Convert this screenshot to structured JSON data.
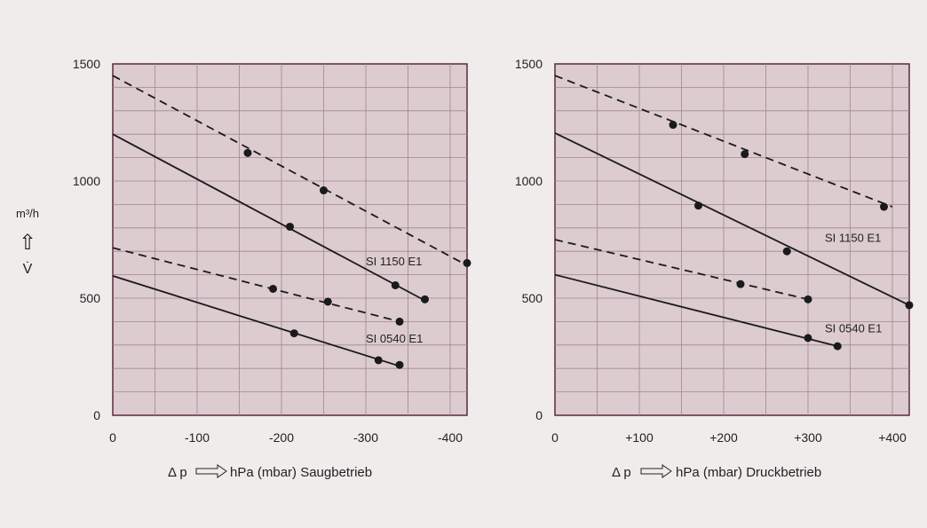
{
  "y_axis": {
    "unit": "m³/h",
    "symbol": "V̇",
    "arrow": "⇧"
  },
  "chart_data": [
    {
      "type": "line",
      "title": "",
      "xlabel_prefix": "Δ p",
      "xlabel_text": "hPa (mbar) Saugbetrieb",
      "xlim": [
        0,
        -420
      ],
      "ylim": [
        0,
        1500
      ],
      "x_ticks": [
        0,
        -100,
        -200,
        -300,
        -400
      ],
      "x_tick_labels": [
        "0",
        "-100",
        "-200",
        "-300",
        "-400"
      ],
      "y_ticks": [
        0,
        500,
        1000,
        1500
      ],
      "y_tick_labels": [
        "0",
        "500",
        "1000",
        "1500"
      ],
      "grid": true,
      "labels": [
        {
          "text": "SI 1150 E1",
          "x": -300,
          "y": 640
        },
        {
          "text": "SI 0540 E1",
          "x": -300,
          "y": 310
        }
      ],
      "series": [
        {
          "style": "dashed",
          "line": [
            [
              0,
              1450
            ],
            [
              -420,
              640
            ]
          ],
          "points": [
            [
              -160,
              1120
            ],
            [
              -250,
              960
            ],
            [
              -420,
              650
            ]
          ]
        },
        {
          "style": "solid",
          "line": [
            [
              0,
              1200
            ],
            [
              -370,
              490
            ]
          ],
          "points": [
            [
              -210,
              805
            ],
            [
              -335,
              555
            ],
            [
              -370,
              495
            ]
          ]
        },
        {
          "style": "dashed",
          "line": [
            [
              0,
              715
            ],
            [
              -340,
              400
            ]
          ],
          "points": [
            [
              -190,
              540
            ],
            [
              -255,
              485
            ],
            [
              -340,
              400
            ]
          ]
        },
        {
          "style": "solid",
          "line": [
            [
              0,
              595
            ],
            [
              -340,
              210
            ]
          ],
          "points": [
            [
              -215,
              350
            ],
            [
              -315,
              235
            ],
            [
              -340,
              215
            ]
          ]
        }
      ]
    },
    {
      "type": "line",
      "title": "",
      "xlabel_prefix": "Δ p",
      "xlabel_text": "hPa (mbar) Druckbetrieb",
      "xlim": [
        0,
        420
      ],
      "ylim": [
        0,
        1500
      ],
      "x_ticks": [
        0,
        100,
        200,
        300,
        400
      ],
      "x_tick_labels": [
        "0",
        "+100",
        "+200",
        "+300",
        "+400"
      ],
      "y_ticks": [
        0,
        500,
        1000,
        1500
      ],
      "y_tick_labels": [
        "0",
        "500",
        "1000",
        "1500"
      ],
      "grid": true,
      "labels": [
        {
          "text": "SI 1150 E1",
          "x": 320,
          "y": 740
        },
        {
          "text": "SI 0540 E1",
          "x": 320,
          "y": 355
        }
      ],
      "series": [
        {
          "style": "dashed",
          "line": [
            [
              0,
              1450
            ],
            [
              400,
              890
            ]
          ],
          "points": [
            [
              140,
              1240
            ],
            [
              225,
              1115
            ],
            [
              390,
              890
            ]
          ]
        },
        {
          "style": "solid",
          "line": [
            [
              0,
              1205
            ],
            [
              420,
              470
            ]
          ],
          "points": [
            [
              170,
              895
            ],
            [
              275,
              700
            ],
            [
              420,
              470
            ]
          ]
        },
        {
          "style": "dashed",
          "line": [
            [
              0,
              750
            ],
            [
              300,
              495
            ]
          ],
          "points": [
            [
              220,
              560
            ],
            [
              300,
              495
            ]
          ]
        },
        {
          "style": "solid",
          "line": [
            [
              0,
              600
            ],
            [
              335,
              295
            ]
          ],
          "points": [
            [
              300,
              330
            ],
            [
              335,
              295
            ]
          ]
        }
      ]
    }
  ]
}
